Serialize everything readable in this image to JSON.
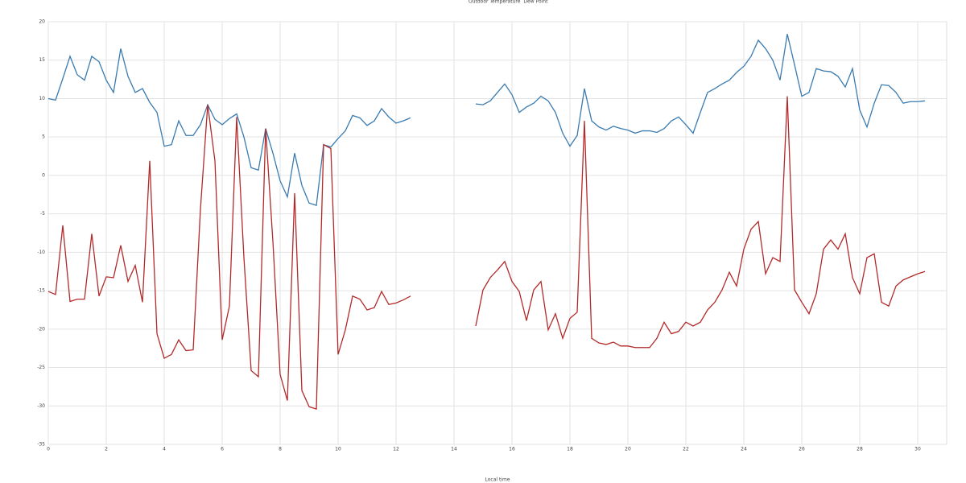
{
  "chart_data": {
    "type": "line",
    "xlabel": "Local time",
    "x": [
      0,
      0.25,
      0.5,
      0.75,
      1,
      1.25,
      1.5,
      1.75,
      2,
      2.25,
      2.5,
      2.75,
      3,
      3.25,
      3.5,
      3.75,
      4,
      4.25,
      4.5,
      4.75,
      5,
      5.25,
      5.5,
      5.75,
      6,
      6.25,
      6.5,
      6.75,
      7,
      7.25,
      7.5,
      7.75,
      8,
      8.25,
      8.5,
      8.75,
      9,
      9.25,
      9.5,
      9.75,
      10,
      10.25,
      10.5,
      10.75,
      11,
      11.25,
      11.5,
      11.75,
      12,
      12.25,
      12.5,
      13.5,
      14.75,
      15,
      15.25,
      15.5,
      15.75,
      16,
      16.25,
      16.5,
      16.75,
      17,
      17.25,
      17.5,
      17.75,
      18,
      18.25,
      18.5,
      18.75,
      19,
      19.25,
      19.5,
      19.75,
      20,
      20.25,
      20.5,
      20.75,
      21,
      21.25,
      21.5,
      21.75,
      22,
      22.25,
      22.5,
      22.75,
      23,
      23.25,
      23.5,
      23.75,
      24,
      24.25,
      24.5,
      24.75,
      25,
      25.25,
      25.5,
      25.75,
      26,
      26.25,
      26.5,
      26.75,
      27,
      27.25,
      27.5,
      27.75,
      28,
      28.25,
      28.5,
      28.75,
      29,
      29.25,
      29.5,
      29.75,
      30,
      30.25
    ],
    "series": [
      {
        "name": "Outdoor Temperature",
        "color": "#3a7bb0",
        "values": [
          10.0,
          9.8,
          12.6,
          15.5,
          13.1,
          12.4,
          15.5,
          14.8,
          12.4,
          10.8,
          16.5,
          12.9,
          10.8,
          11.3,
          9.5,
          8.2,
          3.8,
          4.0,
          7.1,
          5.2,
          5.2,
          6.6,
          9.2,
          7.3,
          6.6,
          7.4,
          8.0,
          5.0,
          1.0,
          0.7,
          6.1,
          2.9,
          -0.7,
          -2.8,
          2.9,
          -1.3,
          -3.6,
          -3.9,
          4.0,
          3.7,
          4.8,
          5.8,
          7.8,
          7.5,
          6.5,
          7.1,
          8.7,
          7.6,
          6.8,
          7.1,
          7.5,
          null,
          9.3,
          9.2,
          9.7,
          10.8,
          11.9,
          10.5,
          8.2,
          8.9,
          9.4,
          10.3,
          9.7,
          8.2,
          5.5,
          3.8,
          5.2,
          11.3,
          7.1,
          6.3,
          5.9,
          6.4,
          6.1,
          5.9,
          5.5,
          5.8,
          5.8,
          5.6,
          6.1,
          7.1,
          7.6,
          6.6,
          5.5,
          8.2,
          10.8,
          11.3,
          11.9,
          12.4,
          13.4,
          14.2,
          15.5,
          17.6,
          16.5,
          15.0,
          12.4,
          18.4,
          14.4,
          10.3,
          10.8,
          13.9,
          13.6,
          13.5,
          12.9,
          11.5,
          13.9,
          8.5,
          6.3,
          9.4,
          11.8,
          11.7,
          10.8,
          9.4,
          9.6,
          9.6,
          9.7
        ]
      },
      {
        "name": "Dew Point",
        "color": "#b22a2a",
        "values": [
          -15.1,
          -15.5,
          -6.5,
          -16.4,
          -16.1,
          -16.1,
          -7.6,
          -15.7,
          -13.2,
          -13.3,
          -9.1,
          -13.8,
          -11.7,
          -16.5,
          1.9,
          -20.6,
          -23.8,
          -23.3,
          -21.4,
          -22.8,
          -22.7,
          -4.4,
          9.2,
          1.9,
          -21.4,
          -17.0,
          7.6,
          -10.7,
          -25.4,
          -26.2,
          6.1,
          -8.6,
          -25.9,
          -29.3,
          -2.3,
          -28.0,
          -30.1,
          -30.4,
          4.0,
          3.5,
          -23.3,
          -20.1,
          -15.7,
          -16.1,
          -17.5,
          -17.2,
          -15.1,
          -16.8,
          -16.6,
          -16.2,
          -15.7,
          null,
          -19.6,
          -14.9,
          -13.3,
          -12.3,
          -11.2,
          -13.8,
          -15.1,
          -18.9,
          -14.9,
          -13.8,
          -20.1,
          -18.0,
          -21.2,
          -18.6,
          -17.8,
          7.1,
          -21.2,
          -21.8,
          -22.0,
          -21.7,
          -22.2,
          -22.2,
          -22.4,
          -22.4,
          -22.4,
          -21.2,
          -19.1,
          -20.6,
          -20.3,
          -19.1,
          -19.6,
          -19.1,
          -17.5,
          -16.5,
          -14.9,
          -12.6,
          -14.4,
          -9.6,
          -7.0,
          -6.0,
          -12.8,
          -10.7,
          -11.2,
          10.3,
          -14.9,
          -16.5,
          -18.0,
          -15.4,
          -9.6,
          -8.4,
          -9.6,
          -7.6,
          -13.3,
          -15.4,
          -10.7,
          -10.2,
          -16.5,
          -17.0,
          -14.4,
          -13.6,
          -13.2,
          -12.8,
          -12.5
        ]
      }
    ],
    "xlim": [
      0,
      31
    ],
    "xticks": [
      0,
      2,
      4,
      6,
      8,
      10,
      12,
      14,
      16,
      18,
      20,
      22,
      24,
      26,
      28,
      30
    ],
    "ylim": [
      -35,
      20
    ],
    "yticks": [
      -35,
      -30,
      -25,
      -20,
      -15,
      -10,
      -5,
      0,
      5,
      10,
      15,
      20
    ],
    "grid": true
  }
}
